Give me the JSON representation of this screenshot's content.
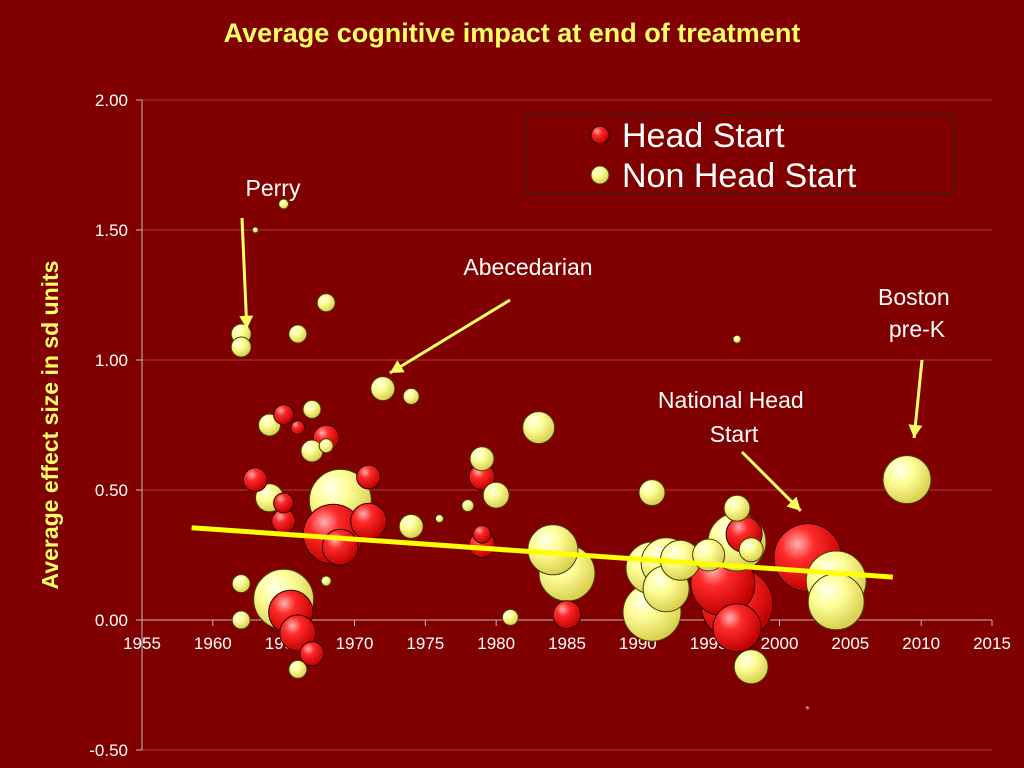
{
  "chart_data": {
    "type": "scatter",
    "title": "Average cognitive impact at end of treatment",
    "xlabel": "",
    "ylabel": "Average effect size in sd units",
    "xlim": [
      1955,
      2015
    ],
    "ylim": [
      -0.5,
      2.0
    ],
    "x_ticks": [
      "1955",
      "1960",
      "1965",
      "1970",
      "1975",
      "1980",
      "1985",
      "1990",
      "1995",
      "2000",
      "2005",
      "2010",
      "2015"
    ],
    "y_ticks": [
      "2.00",
      "1.50",
      "1.00",
      "0.50",
      "0.00",
      "-0.50"
    ],
    "grid": "horizontal",
    "legend_position": "top-right",
    "colors": {
      "background": "#800000",
      "title": "#ffff66",
      "head_start": "#ee0000",
      "non_head_start": "#ffff99",
      "trend_line": "#ffff00",
      "text": "#ffffff"
    },
    "series": [
      {
        "name": "Head Start",
        "points": [
          {
            "x": 1963,
            "y": 0.54,
            "s": 1.2
          },
          {
            "x": 1965,
            "y": 0.79,
            "s": 1.0
          },
          {
            "x": 1966,
            "y": 0.74,
            "s": 0.7
          },
          {
            "x": 1965,
            "y": 0.45,
            "s": 1.0
          },
          {
            "x": 1965,
            "y": 0.38,
            "s": 1.2
          },
          {
            "x": 1968,
            "y": 0.7,
            "s": 1.3
          },
          {
            "x": 1971,
            "y": 0.55,
            "s": 1.2
          },
          {
            "x": 1971,
            "y": 0.38,
            "s": 1.8
          },
          {
            "x": 1968.5,
            "y": 0.33,
            "s": 3.0
          },
          {
            "x": 1969,
            "y": 0.28,
            "s": 1.8
          },
          {
            "x": 1965.5,
            "y": 0.03,
            "s": 2.2
          },
          {
            "x": 1966,
            "y": -0.05,
            "s": 1.8
          },
          {
            "x": 1967,
            "y": -0.13,
            "s": 1.2
          },
          {
            "x": 1979,
            "y": 0.55,
            "s": 1.3
          },
          {
            "x": 1979,
            "y": 0.33,
            "s": 0.9
          },
          {
            "x": 1979,
            "y": 0.29,
            "s": 1.3
          },
          {
            "x": 1985,
            "y": 0.02,
            "s": 1.4
          },
          {
            "x": 1996,
            "y": 0.14,
            "s": 3.2
          },
          {
            "x": 1997,
            "y": 0.06,
            "s": 3.6
          },
          {
            "x": 1997,
            "y": -0.03,
            "s": 2.4
          },
          {
            "x": 1997.5,
            "y": 0.33,
            "s": 1.8
          },
          {
            "x": 2002,
            "y": 0.24,
            "s": 3.4
          },
          {
            "x": 2002,
            "y": -0.34,
            "s": 0.3
          }
        ]
      },
      {
        "name": "Non Head Start",
        "points": [
          {
            "x": 1962,
            "y": 1.1,
            "s": 1.0
          },
          {
            "x": 1962,
            "y": 1.05,
            "s": 1.0
          },
          {
            "x": 1965,
            "y": 1.6,
            "s": 0.5
          },
          {
            "x": 1963,
            "y": 1.5,
            "s": 0.3
          },
          {
            "x": 1966,
            "y": 1.1,
            "s": 0.9
          },
          {
            "x": 1968,
            "y": 1.22,
            "s": 0.9
          },
          {
            "x": 1967,
            "y": 0.81,
            "s": 0.9
          },
          {
            "x": 1964,
            "y": 0.75,
            "s": 1.1
          },
          {
            "x": 1967,
            "y": 0.65,
            "s": 1.1
          },
          {
            "x": 1968,
            "y": 0.67,
            "s": 0.7
          },
          {
            "x": 1964,
            "y": 0.47,
            "s": 1.4
          },
          {
            "x": 1962,
            "y": 0.14,
            "s": 0.9
          },
          {
            "x": 1962,
            "y": 0.0,
            "s": 0.9
          },
          {
            "x": 1965,
            "y": 0.08,
            "s": 3.0
          },
          {
            "x": 1966,
            "y": -0.19,
            "s": 0.9
          },
          {
            "x": 1968,
            "y": 0.15,
            "s": 0.5
          },
          {
            "x": 1969,
            "y": 0.46,
            "s": 3.1
          },
          {
            "x": 1972,
            "y": 0.89,
            "s": 1.2
          },
          {
            "x": 1974,
            "y": 0.86,
            "s": 0.8
          },
          {
            "x": 1974,
            "y": 0.36,
            "s": 1.2
          },
          {
            "x": 1976,
            "y": 0.39,
            "s": 0.4
          },
          {
            "x": 1978,
            "y": 0.44,
            "s": 0.6
          },
          {
            "x": 1979,
            "y": 0.62,
            "s": 1.2
          },
          {
            "x": 1980,
            "y": 0.48,
            "s": 1.3
          },
          {
            "x": 1981,
            "y": 0.01,
            "s": 0.8
          },
          {
            "x": 1983,
            "y": 0.74,
            "s": 1.6
          },
          {
            "x": 1984,
            "y": 0.27,
            "s": 2.5
          },
          {
            "x": 1985,
            "y": 0.18,
            "s": 2.8
          },
          {
            "x": 1991,
            "y": 0.49,
            "s": 1.3
          },
          {
            "x": 1991,
            "y": 0.2,
            "s": 2.6
          },
          {
            "x": 1991,
            "y": 0.03,
            "s": 2.9
          },
          {
            "x": 1992,
            "y": 0.22,
            "s": 2.5
          },
          {
            "x": 1992,
            "y": 0.12,
            "s": 2.3
          },
          {
            "x": 1993,
            "y": 0.23,
            "s": 2.0
          },
          {
            "x": 1995,
            "y": 0.25,
            "s": 1.6
          },
          {
            "x": 1997,
            "y": 0.3,
            "s": 2.9
          },
          {
            "x": 1997,
            "y": 0.43,
            "s": 1.3
          },
          {
            "x": 1997,
            "y": 1.08,
            "s": 0.4
          },
          {
            "x": 1998,
            "y": 0.27,
            "s": 1.2
          },
          {
            "x": 1998,
            "y": -0.18,
            "s": 1.7
          },
          {
            "x": 2004,
            "y": 0.15,
            "s": 3.0
          },
          {
            "x": 2004,
            "y": 0.07,
            "s": 2.8
          },
          {
            "x": 2009,
            "y": 0.54,
            "s": 2.4
          }
        ]
      }
    ],
    "trend_line": {
      "x": [
        1958.5,
        2008
      ],
      "y": [
        0.355,
        0.165
      ]
    },
    "annotations": [
      {
        "id": "perry",
        "text": "Perry",
        "target_x": 1962.4,
        "target_y": 1.12
      },
      {
        "id": "abecedarian",
        "text": "Abecedarian",
        "target_x": 1972.5,
        "target_y": 0.95
      },
      {
        "id": "boston",
        "text": "Boston pre-K",
        "target_x": 2009.5,
        "target_y": 0.7
      },
      {
        "id": "national",
        "text": "National Head Start",
        "target_x": 2001.5,
        "target_y": 0.42
      }
    ]
  }
}
